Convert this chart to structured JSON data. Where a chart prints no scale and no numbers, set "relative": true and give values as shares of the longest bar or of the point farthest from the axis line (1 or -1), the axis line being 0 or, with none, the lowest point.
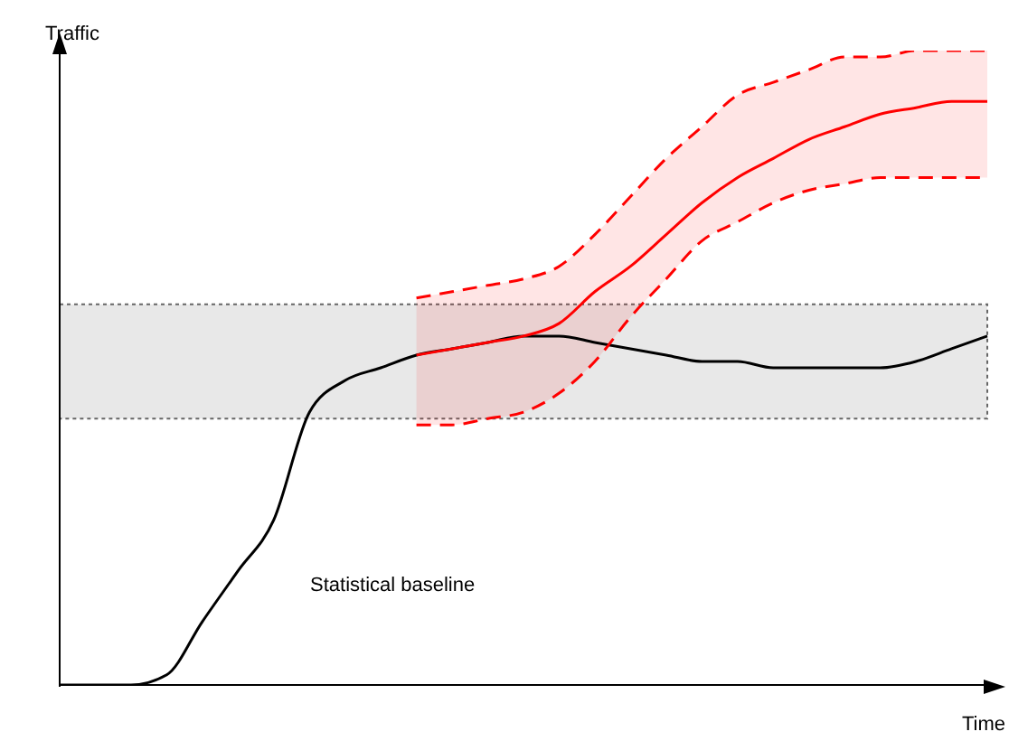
{
  "chart_data": {
    "type": "line",
    "relative": true,
    "xlabel": "Time",
    "ylabel": "Traffic",
    "annotations": [
      "Statistical baseline"
    ],
    "categories": [
      null,
      null,
      null,
      null,
      null,
      null,
      null,
      null,
      null,
      null,
      null,
      null,
      null,
      null,
      null,
      null,
      null,
      null,
      null,
      null,
      null,
      null,
      null,
      null,
      null,
      null,
      null
    ],
    "series": [
      {
        "color": "#000000",
        "values": [
          0,
          0,
          0,
          0.016,
          0.1,
          0.18,
          0.26,
          0.43,
          0.48,
          0.5,
          0.52,
          0.53,
          0.54,
          0.55,
          0.55,
          0.54,
          0.53,
          0.52,
          0.51,
          0.51,
          0.5,
          0.5,
          0.5,
          0.5,
          0.51,
          0.53,
          0.55
        ]
      },
      {
        "color": "#ff0000",
        "values": [
          null,
          null,
          null,
          null,
          null,
          null,
          null,
          null,
          null,
          null,
          0.52,
          0.53,
          0.54,
          0.55,
          0.57,
          0.62,
          0.66,
          0.71,
          0.76,
          0.8,
          0.83,
          0.86,
          0.88,
          0.9,
          0.91,
          0.92,
          0.92
        ],
        "lower": [
          null,
          null,
          null,
          null,
          null,
          null,
          null,
          null,
          null,
          null,
          0.41,
          0.41,
          0.42,
          0.43,
          0.46,
          0.51,
          0.58,
          0.64,
          0.7,
          0.73,
          0.76,
          0.78,
          0.79,
          0.8,
          0.8,
          0.8,
          0.8
        ],
        "upper": [
          null,
          null,
          null,
          null,
          null,
          null,
          null,
          null,
          null,
          null,
          0.61,
          0.62,
          0.63,
          0.64,
          0.66,
          0.71,
          0.77,
          0.83,
          0.88,
          0.93,
          0.95,
          0.97,
          0.99,
          0.99,
          1.0,
          1.0,
          1.0
        ]
      },
      {
        "color": "#ff0000",
        "line_style": "dashed",
        "values": [
          null,
          null,
          null,
          null,
          null,
          null,
          null,
          null,
          null,
          null,
          0.61,
          0.62,
          0.63,
          0.64,
          0.66,
          0.71,
          0.77,
          0.83,
          0.88,
          0.93,
          0.95,
          0.97,
          0.99,
          0.99,
          1.0,
          1.0,
          1.0
        ]
      },
      {
        "color": "#ff0000",
        "line_style": "dashed",
        "values": [
          null,
          null,
          null,
          null,
          null,
          null,
          null,
          null,
          null,
          null,
          0.41,
          0.41,
          0.42,
          0.43,
          0.46,
          0.51,
          0.58,
          0.64,
          0.7,
          0.73,
          0.76,
          0.78,
          0.79,
          0.8,
          0.8,
          0.8,
          0.8
        ]
      }
    ],
    "bands": [
      {
        "axis": "y",
        "from": 0.42,
        "to": 0.6,
        "color": "#d9d9d9"
      }
    ],
    "grid": false,
    "legend": false,
    "marker": "none",
    "line_style": "solid"
  }
}
